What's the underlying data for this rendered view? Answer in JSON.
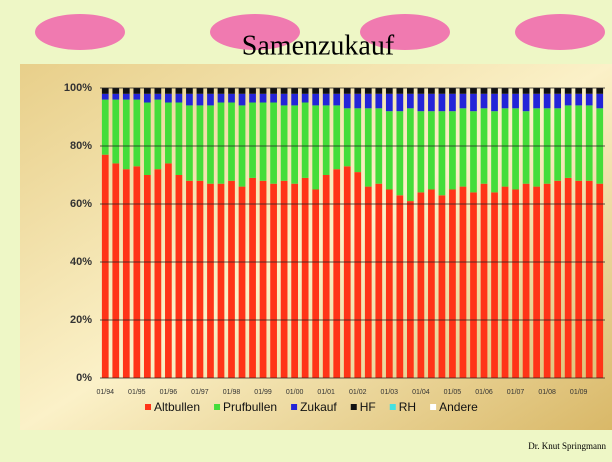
{
  "title": "Samenzukauf",
  "footer": "Dr. Knut Springmann",
  "chart_data": {
    "type": "stacked-bar",
    "categories": [
      "01/94",
      null,
      null,
      "01/95",
      null,
      null,
      "01/96",
      null,
      null,
      "01/97",
      null,
      null,
      "01/98",
      null,
      null,
      "01/99",
      null,
      null,
      "01/00",
      null,
      null,
      "01/01",
      null,
      null,
      "01/02",
      null,
      null,
      "01/03",
      null,
      null,
      "01/04",
      null,
      null,
      "01/05",
      null,
      null,
      "01/06",
      null,
      null,
      "01/07",
      null,
      null,
      "01/08",
      null,
      null,
      "01/09",
      null,
      null
    ],
    "series": [
      {
        "name": "Altbullen",
        "color": "#ff3418",
        "values": [
          77,
          74,
          72,
          73,
          70,
          72,
          74,
          70,
          68,
          68,
          67,
          67,
          68,
          66,
          69,
          68,
          67,
          68,
          67,
          69,
          65,
          70,
          72,
          73,
          71,
          66,
          67,
          65,
          63,
          61,
          64,
          65,
          63,
          65,
          66,
          64,
          67,
          64,
          66,
          65,
          67,
          66,
          67,
          68,
          69,
          68,
          68,
          67
        ]
      },
      {
        "name": "Prufbullen",
        "color": "#44dd3a",
        "values": [
          19,
          22,
          24,
          23,
          25,
          24,
          21,
          25,
          26,
          26,
          27,
          28,
          27,
          28,
          26,
          27,
          28,
          26,
          27,
          26,
          29,
          24,
          22,
          20,
          22,
          27,
          26,
          27,
          29,
          32,
          28,
          27,
          29,
          27,
          27,
          28,
          26,
          28,
          27,
          28,
          25,
          27,
          26,
          25,
          25,
          26,
          26,
          26
        ]
      },
      {
        "name": "Zukauf",
        "color": "#2424d8",
        "values": [
          2,
          2,
          2,
          2,
          3,
          2,
          3,
          3,
          4,
          4,
          4,
          3,
          3,
          4,
          3,
          3,
          3,
          4,
          4,
          3,
          4,
          4,
          4,
          5,
          5,
          5,
          5,
          6,
          6,
          5,
          6,
          6,
          6,
          6,
          5,
          6,
          5,
          6,
          5,
          5,
          6,
          5,
          5,
          5,
          4,
          4,
          4,
          5
        ]
      },
      {
        "name": "HF",
        "color": "#111111",
        "values": [
          2,
          2,
          2,
          2,
          2,
          2,
          2,
          2,
          2,
          2,
          2,
          2,
          2,
          2,
          2,
          2,
          2,
          2,
          2,
          2,
          2,
          2,
          2,
          2,
          2,
          2,
          2,
          2,
          2,
          2,
          2,
          2,
          2,
          2,
          2,
          2,
          2,
          2,
          2,
          2,
          2,
          2,
          2,
          2,
          2,
          2,
          2,
          2
        ]
      },
      {
        "name": "RH",
        "color": "#44e0e0",
        "values": [
          0,
          0,
          0,
          0,
          0,
          0,
          0,
          0,
          0,
          0,
          0,
          0,
          0,
          0,
          0,
          0,
          0,
          0,
          0,
          0,
          0,
          0,
          0,
          0,
          0,
          0,
          0,
          0,
          0,
          0,
          0,
          0,
          0,
          0,
          0,
          0,
          0,
          0,
          0,
          0,
          0,
          0,
          0,
          0,
          0,
          0,
          0,
          0
        ]
      },
      {
        "name": "Andere",
        "color": "#ffffff",
        "values": [
          0,
          0,
          0,
          0,
          0,
          0,
          0,
          0,
          0,
          0,
          0,
          0,
          0,
          0,
          0,
          0,
          0,
          0,
          0,
          0,
          0,
          0,
          0,
          0,
          0,
          0,
          0,
          0,
          0,
          0,
          0,
          0,
          0,
          0,
          0,
          0,
          0,
          0,
          0,
          0,
          0,
          0,
          0,
          0,
          0,
          0,
          0,
          0
        ]
      }
    ],
    "ylim": [
      0,
      100
    ],
    "yticks": [
      {
        "value": 0,
        "label": "0%"
      },
      {
        "value": 20,
        "label": "20%"
      },
      {
        "value": 40,
        "label": "40%"
      },
      {
        "value": 60,
        "label": "60%"
      },
      {
        "value": 80,
        "label": "80%"
      },
      {
        "value": 100,
        "label": "100%"
      }
    ],
    "grid": true
  }
}
